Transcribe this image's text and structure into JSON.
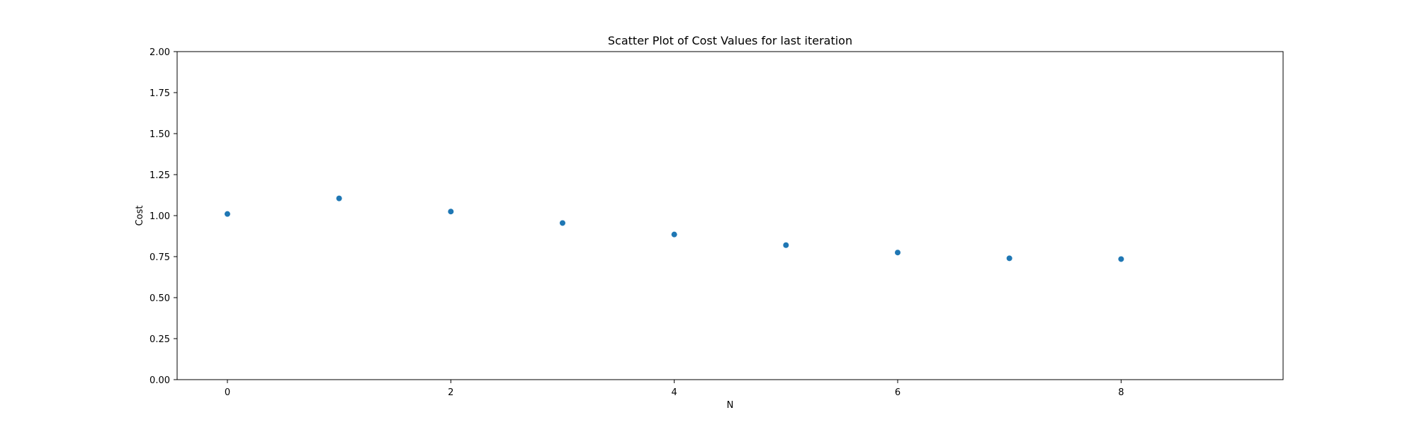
{
  "chart_data": {
    "type": "scatter",
    "title": "Scatter Plot of Cost Values for last iteration",
    "xlabel": "N",
    "ylabel": "Cost",
    "xlim": [
      -0.45,
      9.45
    ],
    "ylim": [
      0.0,
      2.0
    ],
    "xticks": [
      0,
      2,
      4,
      6,
      8
    ],
    "xtick_labels": [
      "0",
      "2",
      "4",
      "6",
      "8"
    ],
    "yticks": [
      0.0,
      0.25,
      0.5,
      0.75,
      1.0,
      1.25,
      1.5,
      1.75,
      2.0
    ],
    "ytick_labels": [
      "0.00",
      "0.25",
      "0.50",
      "0.75",
      "1.00",
      "1.25",
      "1.50",
      "1.75",
      "2.00"
    ],
    "grid": false,
    "series": [
      {
        "color": "#1f77b4",
        "x": [
          0,
          1,
          2,
          3,
          4,
          5,
          6,
          7,
          8
        ],
        "y": [
          1.01,
          1.105,
          1.025,
          0.955,
          0.885,
          0.82,
          0.775,
          0.74,
          0.735
        ]
      }
    ]
  }
}
